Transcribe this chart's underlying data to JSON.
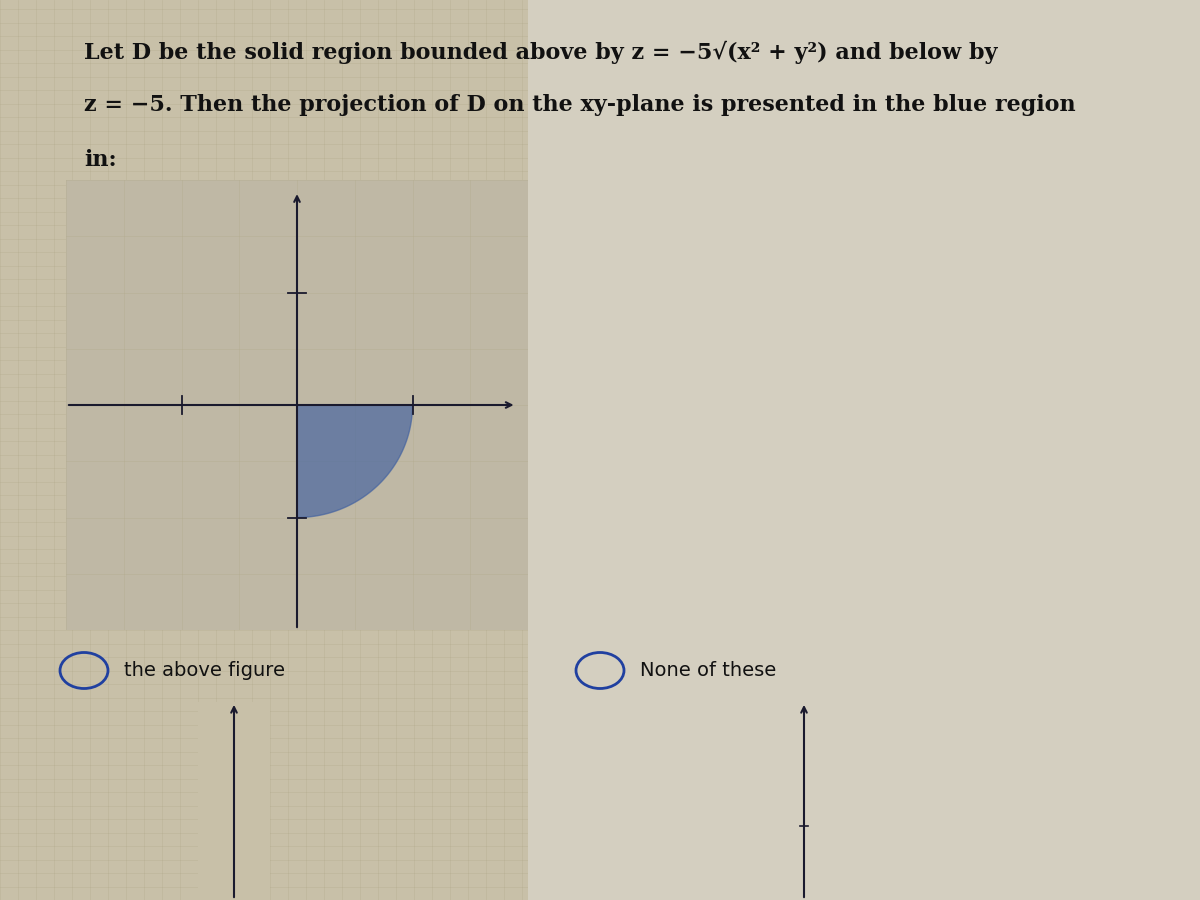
{
  "background_color": "#c8c0a8",
  "plot_bg_color": "#bfb8a5",
  "right_panel_color": "#d4cfc0",
  "question_text_line1": "Let D be the solid region bounded above by z = −5√(x² + y²) and below by",
  "question_text_line2": "z = −5. Then the projection of D on the xy-plane is presented in the blue region",
  "question_text_line3": "in:",
  "option1": "the above figure",
  "option2": "None of these",
  "plot_xlim": [
    -2,
    2
  ],
  "plot_ylim": [
    -2,
    2
  ],
  "blue_fill_color": "#4060a0",
  "blue_fill_alpha": 0.65,
  "axis_color": "#1a1a2e",
  "text_color": "#111111",
  "question_fontsize": 16,
  "option_fontsize": 14,
  "grid_color": "#b8b090",
  "grid_alpha": 0.5
}
